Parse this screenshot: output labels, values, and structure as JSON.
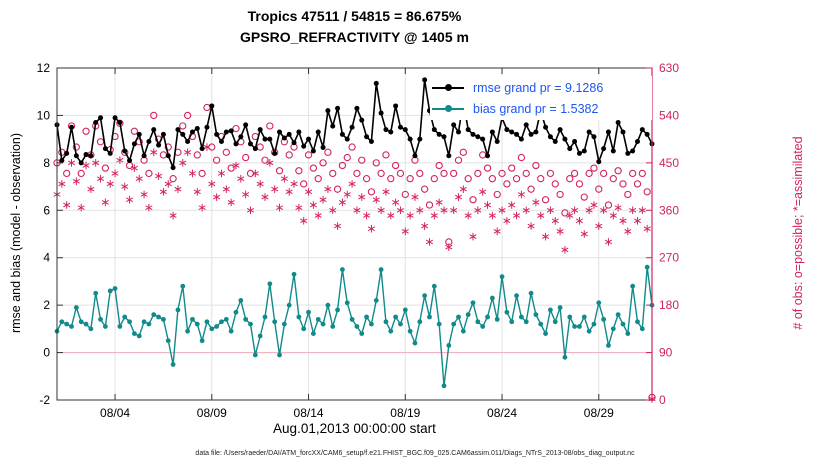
{
  "caption": "data file: /Users/raeder/DAI/ATM_forcXX/CAM6_setup/f.e21.FHIST_BGC.f09_025.CAM6assim.011/Diags_NTrS_2013-08/obs_diag_output.nc",
  "chart_data": {
    "type": "line",
    "title": "Tropics 47511 / 54815 = 86.675%",
    "subtitle": "GPSRO_REFRACTIVITY @ 1405 m",
    "xlabel": "Aug.01,2013 00:00:00 start",
    "ylabel_left": "rmse and bias (model - observation)",
    "ylabel_right": "# of obs: o=possible; *=assimilated",
    "x_range": [
      1.0,
      31.75
    ],
    "x_step_days": 0.25,
    "x_ticks": {
      "days": [
        4,
        9,
        14,
        19,
        24,
        29
      ],
      "labels": [
        "08/04",
        "08/09",
        "08/14",
        "08/19",
        "08/24",
        "08/29"
      ]
    },
    "ylim_left": [
      -2,
      12
    ],
    "yticks_left": [
      -2,
      0,
      2,
      4,
      6,
      8,
      10,
      12
    ],
    "ylim_right": [
      0,
      630
    ],
    "yticks_right": [
      0,
      90,
      180,
      270,
      360,
      450,
      540,
      630
    ],
    "grid": true,
    "zero_line_left": 0,
    "colors": {
      "rmse": "#000000",
      "bias": "#108A8A",
      "obs": "#D3245C",
      "legend_text": "#1E56F5",
      "grid": "#E2E2E2",
      "zero_line": "#F2B3C5",
      "axis": "#333333"
    },
    "legend_position": "top-right",
    "series": [
      {
        "name": "rmse grand pr = 9.1286",
        "axis": "left",
        "style": "line-dot",
        "color": "#000000",
        "values": [
          9.6,
          8.1,
          8.4,
          9.5,
          8.3,
          8.0,
          8.35,
          8.3,
          9.7,
          9.9,
          8.6,
          8.4,
          9.9,
          9.7,
          8.5,
          8.1,
          8.8,
          9.2,
          8.3,
          8.9,
          9.4,
          8.75,
          9.2,
          8.3,
          7.8,
          9.4,
          9.2,
          8.9,
          9.3,
          9.45,
          8.6,
          9.5,
          10.4,
          9.2,
          8.9,
          9.3,
          9.35,
          8.8,
          9.1,
          9.6,
          8.8,
          8.6,
          9.4,
          9.0,
          9.0,
          8.4,
          9.3,
          9.05,
          9.2,
          8.85,
          9.3,
          8.7,
          9.0,
          8.5,
          9.3,
          8.65,
          10.2,
          9.55,
          10.3,
          9.2,
          9.0,
          9.5,
          10.3,
          9.8,
          9.1,
          8.9,
          11.35,
          10.1,
          9.4,
          9.3,
          10.4,
          9.5,
          9.4,
          9.0,
          8.3,
          9.0,
          11.5,
          10.2,
          9.4,
          9.2,
          9.1,
          8.3,
          9.6,
          9.3,
          10.6,
          9.4,
          9.2,
          9.1,
          9.0,
          8.3,
          9.3,
          8.9,
          9.9,
          9.4,
          9.3,
          9.2,
          9.0,
          9.6,
          9.2,
          9.3,
          10.2,
          9.5,
          9.1,
          8.9,
          9.4,
          9.0,
          8.6,
          8.9,
          8.4,
          8.5,
          9.3,
          9.1,
          8.05,
          8.6,
          9.3,
          8.5,
          9.7,
          9.3,
          8.4,
          8.5,
          8.9,
          9.4,
          9.2,
          8.8
        ]
      },
      {
        "name": "bias grand pr = 1.5382",
        "axis": "left",
        "style": "line-dot",
        "color": "#108A8A",
        "values": [
          0.9,
          1.3,
          1.2,
          1.1,
          1.9,
          1.3,
          1.2,
          1.0,
          2.5,
          1.4,
          1.1,
          2.6,
          2.7,
          1.1,
          1.5,
          1.3,
          0.8,
          0.7,
          1.3,
          1.2,
          1.6,
          1.5,
          1.4,
          0.5,
          -0.5,
          1.8,
          2.8,
          0.9,
          1.4,
          1.2,
          0.5,
          1.3,
          1.0,
          1.1,
          1.3,
          1.4,
          0.9,
          1.7,
          2.2,
          1.4,
          1.2,
          -0.1,
          0.7,
          1.5,
          2.9,
          1.3,
          -0.1,
          1.2,
          2.0,
          3.3,
          1.5,
          1.0,
          1.7,
          0.8,
          1.4,
          1.2,
          2.0,
          1.1,
          1.8,
          3.5,
          2.1,
          1.4,
          1.1,
          0.8,
          1.5,
          1.2,
          2.2,
          3.5,
          1.3,
          0.9,
          1.5,
          1.2,
          1.8,
          0.9,
          0.4,
          1.3,
          2.4,
          1.5,
          2.8,
          1.2,
          -1.4,
          0.3,
          1.2,
          1.5,
          0.9,
          1.6,
          2.1,
          1.3,
          1.1,
          1.5,
          2.3,
          1.4,
          3.2,
          1.7,
          1.3,
          2.4,
          1.5,
          1.3,
          2.5,
          1.6,
          1.2,
          0.8,
          1.8,
          1.3,
          1.9,
          -0.2,
          1.5,
          1.1,
          1.1,
          1.5,
          0.9,
          1.2,
          2.1,
          1.4,
          0.3,
          1.0,
          1.6,
          1.2,
          0.8,
          2.8,
          1.3,
          1.0,
          3.6,
          2.0
        ]
      },
      {
        "name": "possible",
        "axis": "right",
        "style": "circle",
        "color": "#D3245C",
        "values": [
          450,
          470,
          430,
          520,
          480,
          430,
          510,
          465,
          520,
          490,
          440,
          475,
          500,
          525,
          470,
          445,
          510,
          490,
          455,
          430,
          540,
          495,
          465,
          480,
          420,
          470,
          520,
          540,
          500,
          465,
          430,
          555,
          480,
          455,
          500,
          470,
          440,
          515,
          490,
          460,
          430,
          500,
          480,
          455,
          520,
          470,
          435,
          490,
          465,
          480,
          435,
          410,
          465,
          440,
          420,
          450,
          470,
          430,
          400,
          445,
          460,
          480,
          430,
          455,
          420,
          395,
          450,
          430,
          465,
          420,
          445,
          430,
          390,
          420,
          455,
          430,
          400,
          370,
          420,
          445,
          430,
          300,
          430,
          455,
          470,
          420,
          380,
          430,
          465,
          440,
          420,
          390,
          430,
          410,
          440,
          420,
          460,
          430,
          400,
          445,
          420,
          380,
          430,
          410,
          390,
          355,
          420,
          430,
          410,
          385,
          430,
          440,
          400,
          430,
          370,
          420,
          435,
          410,
          390,
          430,
          410,
          430,
          395,
          5
        ]
      },
      {
        "name": "assimilated",
        "axis": "right",
        "style": "asterisk",
        "color": "#D3245C",
        "values": [
          390,
          410,
          370,
          450,
          415,
          365,
          445,
          400,
          450,
          420,
          375,
          410,
          430,
          455,
          405,
          380,
          440,
          420,
          390,
          365,
          470,
          425,
          395,
          410,
          350,
          400,
          450,
          470,
          430,
          395,
          365,
          480,
          410,
          385,
          430,
          400,
          375,
          445,
          420,
          390,
          360,
          430,
          410,
          385,
          450,
          400,
          365,
          420,
          395,
          410,
          365,
          340,
          395,
          370,
          350,
          380,
          400,
          360,
          330,
          375,
          390,
          410,
          360,
          385,
          350,
          325,
          380,
          360,
          395,
          350,
          375,
          360,
          320,
          350,
          385,
          360,
          330,
          300,
          350,
          375,
          360,
          290,
          360,
          385,
          400,
          350,
          310,
          360,
          395,
          370,
          350,
          320,
          360,
          340,
          370,
          350,
          390,
          360,
          330,
          375,
          350,
          310,
          360,
          340,
          320,
          285,
          350,
          360,
          340,
          315,
          360,
          370,
          330,
          360,
          300,
          350,
          365,
          340,
          320,
          360,
          340,
          360,
          325,
          2
        ]
      }
    ]
  }
}
